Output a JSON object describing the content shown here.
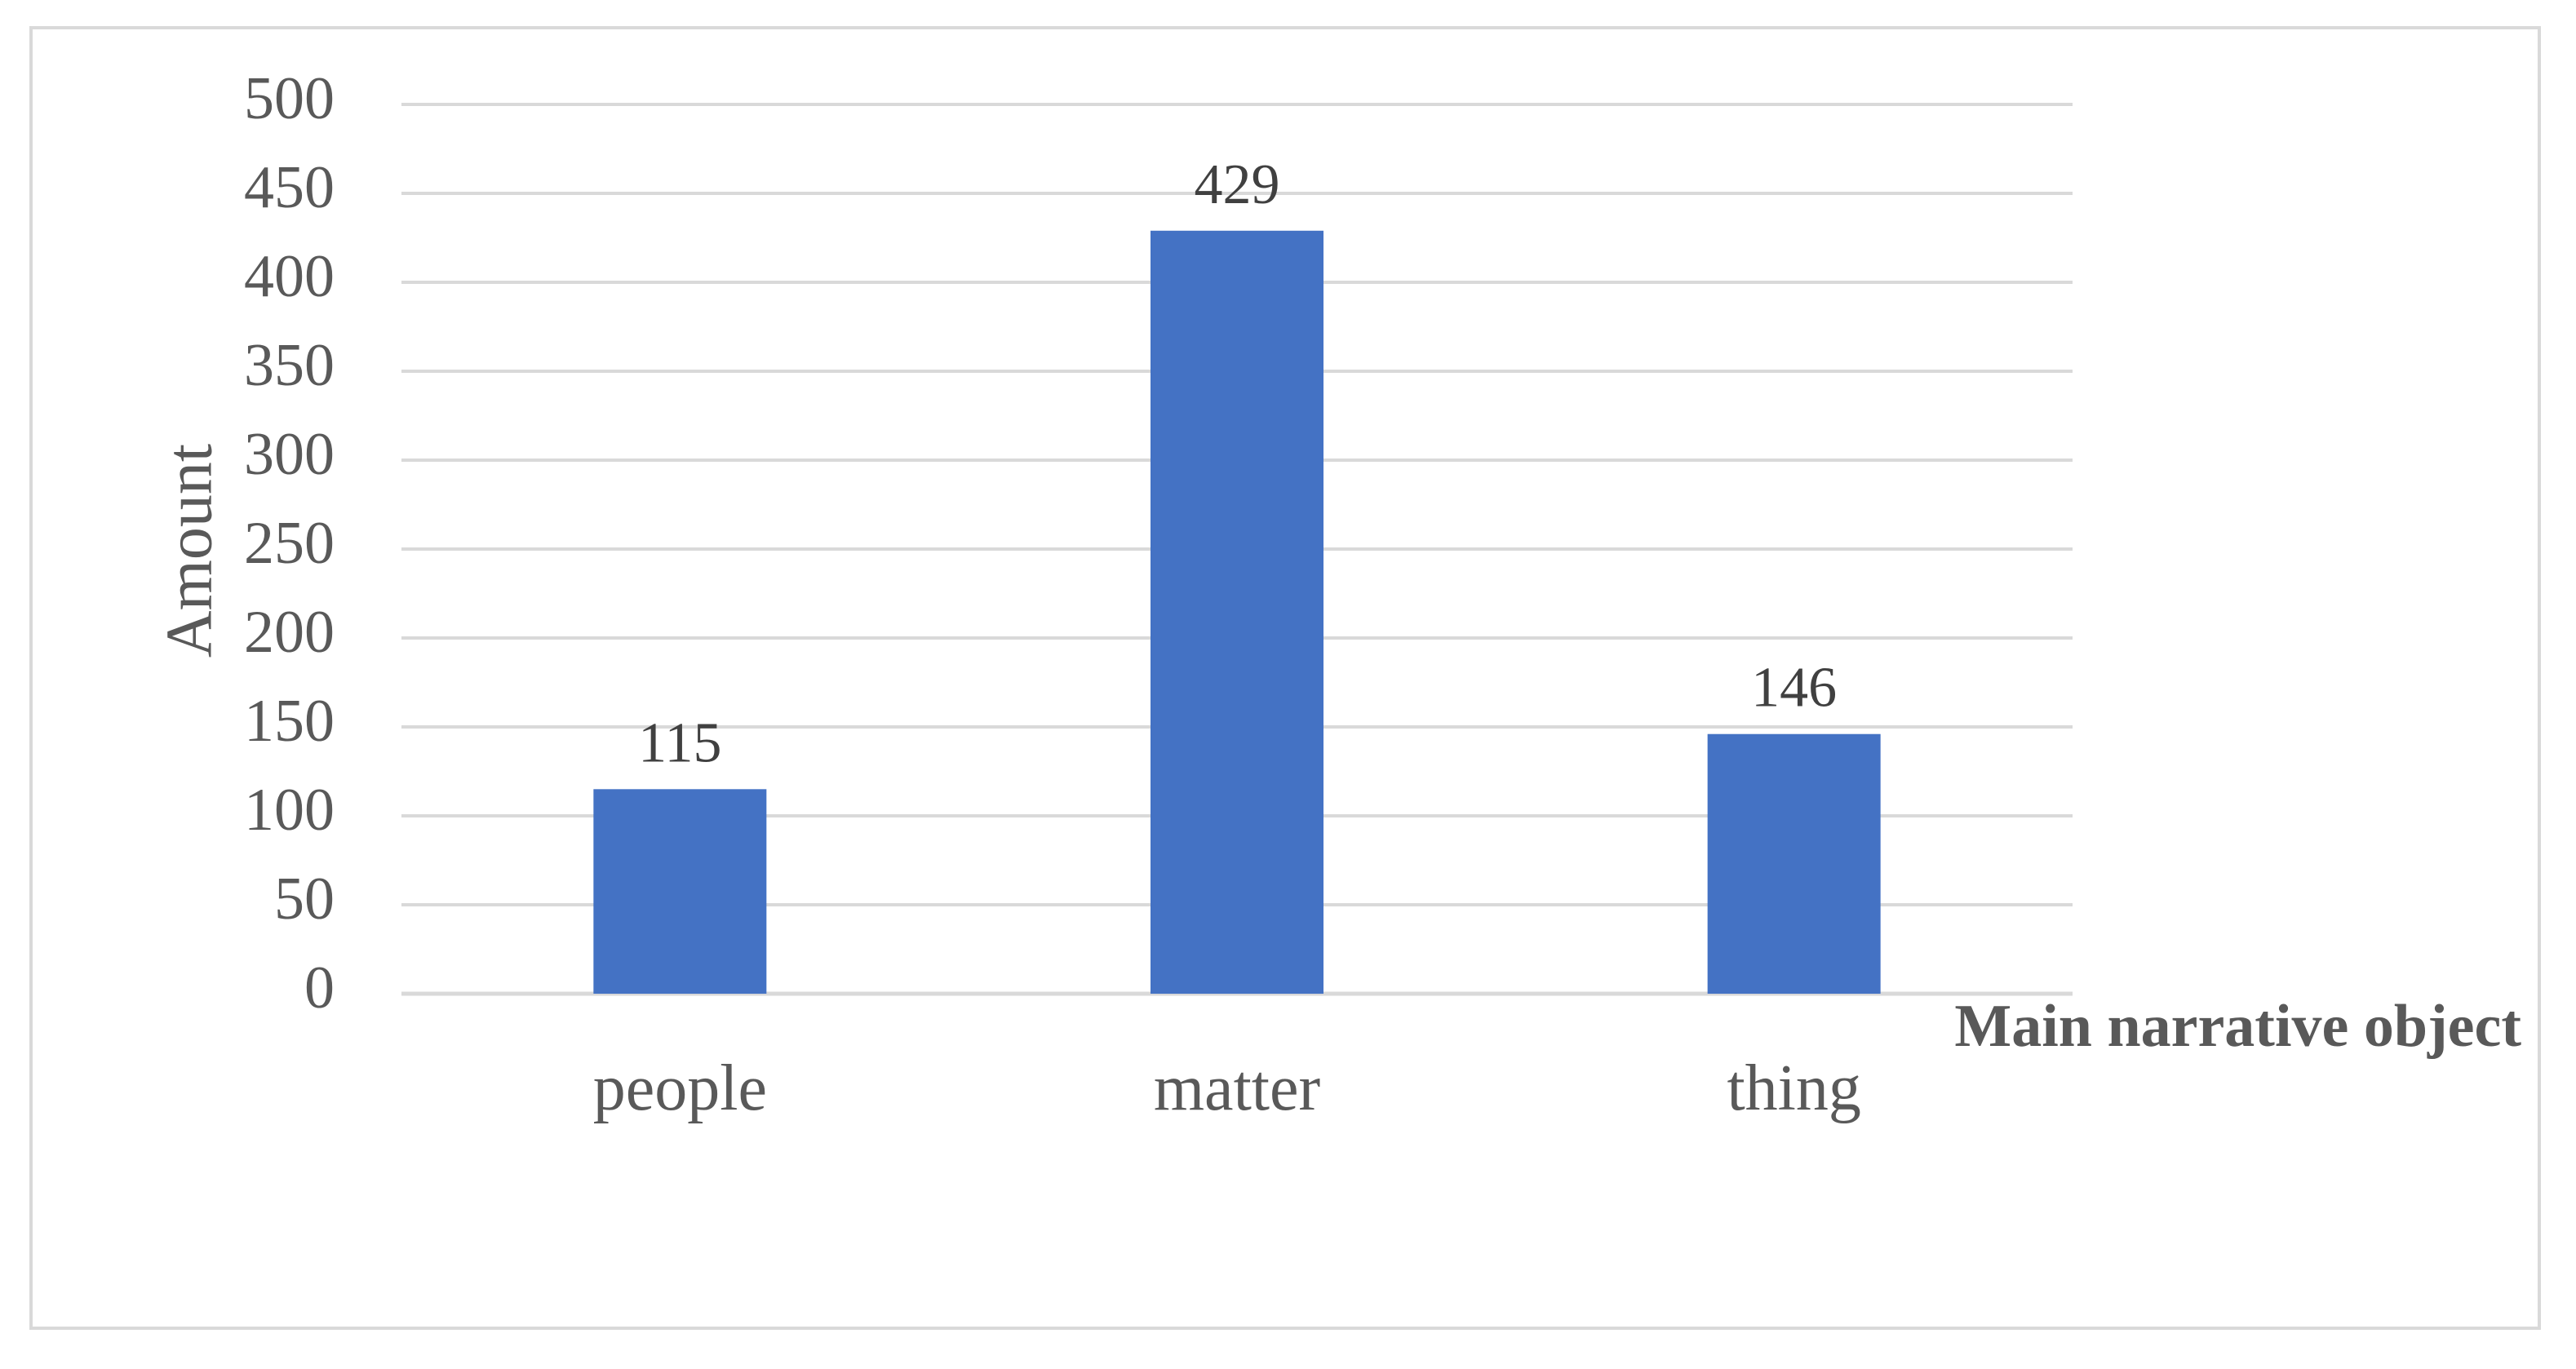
{
  "chart_data": {
    "type": "bar",
    "categories": [
      "people",
      "matter",
      "thing"
    ],
    "values": [
      115,
      429,
      146
    ],
    "data_labels": [
      "115",
      "429",
      "146"
    ],
    "title": "",
    "xlabel": "Main narrative object",
    "ylabel": "Amount",
    "ylim": [
      0,
      500
    ],
    "yticks": [
      0,
      50,
      100,
      150,
      200,
      250,
      300,
      350,
      400,
      450,
      500
    ],
    "grid": true,
    "legend": "none",
    "colors": {
      "bar": "#4472C4",
      "grid": "#d9d9d9",
      "text": "#595959",
      "data_label": "#404040",
      "frame": "#d9d9d9"
    }
  }
}
